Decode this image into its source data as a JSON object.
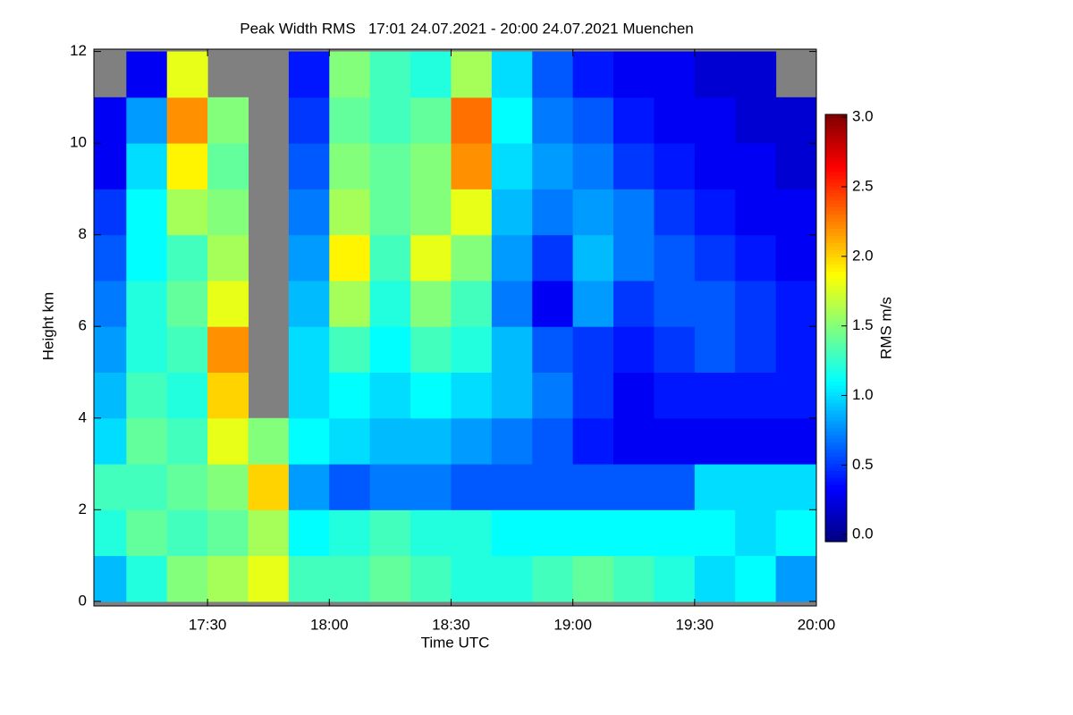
{
  "chart_data": {
    "type": "heatmap",
    "title": "Peak Width RMS   17:01 24.07.2021 - 20:00 24.07.2021 Muenchen",
    "x_label": "Time UTC",
    "y_label": "Height km",
    "colorbar_label": "RMS m/s",
    "colormap": "jet",
    "missing_color": "#808080",
    "x": [
      1022,
      1030,
      1040,
      1050,
      1060,
      1070,
      1080,
      1090,
      1100,
      1110,
      1120,
      1130,
      1140,
      1150,
      1160,
      1170,
      1180,
      1190,
      1200
    ],
    "y": [
      0,
      1,
      2,
      3,
      4,
      5,
      6,
      7,
      8,
      9,
      10,
      11,
      12
    ],
    "z": [
      [
        0.9,
        1.2,
        1.5,
        1.6,
        1.8,
        1.3,
        1.3,
        1.4,
        1.3,
        1.2,
        1.2,
        1.3,
        1.4,
        1.3,
        1.2,
        1.0,
        1.1,
        0.8
      ],
      [
        1.2,
        1.4,
        1.3,
        1.4,
        1.6,
        1.1,
        1.2,
        1.3,
        1.2,
        1.2,
        1.1,
        1.1,
        1.1,
        1.1,
        1.1,
        1.1,
        1.0,
        1.1
      ],
      [
        1.3,
        1.3,
        1.4,
        1.5,
        2.0,
        0.8,
        0.6,
        0.7,
        0.7,
        0.6,
        0.6,
        0.6,
        0.6,
        0.6,
        0.6,
        1.0,
        1.0,
        1.0
      ],
      [
        1.0,
        1.4,
        1.3,
        1.8,
        1.5,
        1.1,
        1.0,
        0.9,
        0.9,
        0.8,
        0.7,
        0.6,
        0.4,
        0.3,
        0.3,
        0.3,
        0.3,
        0.3
      ],
      [
        0.9,
        1.3,
        1.2,
        2.0,
        null,
        1.0,
        1.1,
        1.0,
        1.1,
        1.0,
        0.9,
        0.7,
        0.5,
        0.3,
        0.4,
        0.4,
        0.4,
        0.4
      ],
      [
        0.8,
        1.2,
        1.3,
        2.2,
        null,
        1.0,
        1.3,
        1.1,
        1.3,
        1.2,
        0.9,
        0.6,
        0.5,
        0.4,
        0.5,
        0.6,
        0.5,
        0.4
      ],
      [
        0.7,
        1.2,
        1.4,
        1.8,
        null,
        0.9,
        1.6,
        1.2,
        1.5,
        1.3,
        0.7,
        0.3,
        0.8,
        0.5,
        0.6,
        0.6,
        0.5,
        0.4
      ],
      [
        0.6,
        1.1,
        1.3,
        1.6,
        null,
        0.8,
        1.9,
        1.3,
        1.8,
        1.5,
        0.8,
        0.5,
        0.9,
        0.7,
        0.6,
        0.5,
        0.4,
        0.3
      ],
      [
        0.5,
        1.1,
        1.6,
        1.5,
        null,
        0.7,
        1.6,
        1.4,
        1.5,
        1.8,
        0.9,
        0.7,
        0.8,
        0.7,
        0.5,
        0.4,
        0.3,
        0.3
      ],
      [
        0.3,
        1.0,
        1.9,
        1.4,
        null,
        0.6,
        1.5,
        1.4,
        1.5,
        2.2,
        1.0,
        0.8,
        0.7,
        0.5,
        0.4,
        0.3,
        0.3,
        0.2
      ],
      [
        0.3,
        0.8,
        2.2,
        1.5,
        null,
        0.5,
        1.4,
        1.3,
        1.4,
        2.3,
        1.1,
        0.7,
        0.6,
        0.4,
        0.3,
        0.3,
        0.2,
        0.2
      ],
      [
        null,
        0.3,
        1.8,
        null,
        null,
        0.4,
        1.5,
        1.3,
        1.2,
        1.6,
        1.0,
        0.6,
        0.4,
        0.3,
        0.3,
        0.2,
        0.2,
        null
      ]
    ],
    "xlim": [
      1022,
      1200
    ],
    "xticks": [
      {
        "value": 1050,
        "label": "17:30"
      },
      {
        "value": 1080,
        "label": "18:00"
      },
      {
        "value": 1110,
        "label": "18:30"
      },
      {
        "value": 1140,
        "label": "19:00"
      },
      {
        "value": 1170,
        "label": "19:30"
      },
      {
        "value": 1200,
        "label": "20:00"
      }
    ],
    "ylim": [
      -0.1,
      12.05
    ],
    "yticks": [
      0,
      2,
      4,
      6,
      8,
      10,
      12
    ],
    "zlim": [
      -0.05,
      3.02
    ],
    "zticks": [
      {
        "value": 0,
        "label": "0.0"
      },
      {
        "value": 0.5,
        "label": "0.5"
      },
      {
        "value": 1,
        "label": "1.0"
      },
      {
        "value": 1.5,
        "label": "1.5"
      },
      {
        "value": 2,
        "label": "2.0"
      },
      {
        "value": 2.5,
        "label": "2.5"
      },
      {
        "value": 3,
        "label": "3.0"
      }
    ]
  }
}
